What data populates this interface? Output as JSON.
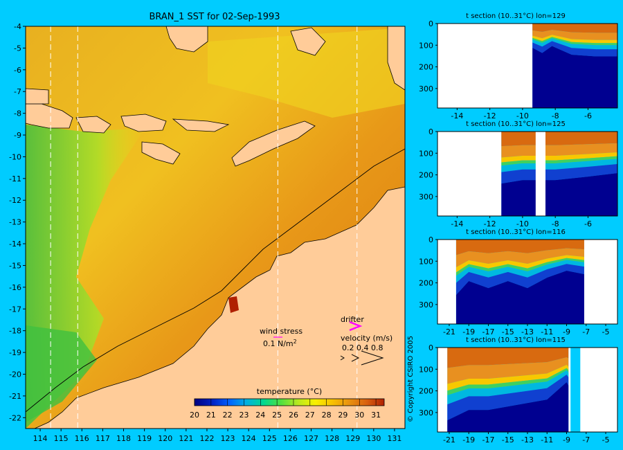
{
  "chart_data": [
    {
      "type": "heatmap",
      "title": "BRAN_1 SST for 02-Sep-1993",
      "x_ticks": [
        114,
        115,
        116,
        117,
        118,
        119,
        120,
        121,
        122,
        123,
        124,
        125,
        126,
        127,
        128,
        129,
        130,
        131
      ],
      "y_ticks": [
        -4,
        -5,
        -6,
        -7,
        -8,
        -9,
        -10,
        -11,
        -12,
        -13,
        -14,
        -15,
        -16,
        -17,
        -18,
        -19,
        -20,
        -21,
        -22
      ],
      "xlim": [
        113.3,
        131.5
      ],
      "ylim": [
        -22.5,
        -4
      ],
      "section_lons": [
        114.5,
        115.8,
        125.4,
        129.2
      ],
      "colorbar": {
        "label": "temperature (°C)",
        "ticks": [
          20,
          21,
          22,
          23,
          24,
          25,
          26,
          27,
          28,
          29,
          30,
          31
        ],
        "range": [
          20,
          31.5
        ],
        "colors": [
          "#000080",
          "#0020c0",
          "#0060ff",
          "#00b0e0",
          "#00d890",
          "#50e040",
          "#b8e820",
          "#f8f000",
          "#f8c000",
          "#e89010",
          "#d86010",
          "#b02000"
        ]
      },
      "legend": {
        "wind_label": "wind stress",
        "wind_scale": "0.1 N/m",
        "wind_unit_sup": "2",
        "drifter_label": "drifter",
        "velocity_label": "velocity (m/s)",
        "velocity_values": "0.2 0.4 0.8",
        "drifter_color": "#ff00ff"
      }
    },
    {
      "type": "heatmap",
      "title": "t section (10..31°C) lon=129",
      "x_ticks": [
        -14,
        -12,
        -10,
        -8,
        -6
      ],
      "y_ticks": [
        0,
        100,
        200,
        300
      ],
      "xlim": [
        -15.2,
        -4.2
      ],
      "ylim": [
        0,
        390
      ]
    },
    {
      "type": "heatmap",
      "title": "t section (10..31°C) lon=125",
      "x_ticks": [
        -14,
        -12,
        -10,
        -8,
        -6
      ],
      "y_ticks": [
        0,
        100,
        200,
        300
      ],
      "xlim": [
        -15.2,
        -4.2
      ],
      "ylim": [
        0,
        390
      ]
    },
    {
      "type": "heatmap",
      "title": "t section (10..31°C) lon=116",
      "x_ticks": [
        -21,
        -19,
        -17,
        -15,
        -13,
        -11,
        -9,
        -7,
        -5
      ],
      "y_ticks": [
        0,
        100,
        200,
        300
      ],
      "xlim": [
        -22.2,
        -3.8
      ],
      "ylim": [
        0,
        390
      ]
    },
    {
      "type": "heatmap",
      "title": "t section (10..31°C) lon=115",
      "x_ticks": [
        -21,
        -19,
        -17,
        -15,
        -13,
        -11,
        -9,
        -7,
        -5
      ],
      "y_ticks": [
        0,
        100,
        200,
        300
      ],
      "xlim": [
        -22.2,
        -3.8
      ],
      "ylim": [
        0,
        390
      ]
    }
  ],
  "copyright": "© Copyright CSIRO 2005"
}
